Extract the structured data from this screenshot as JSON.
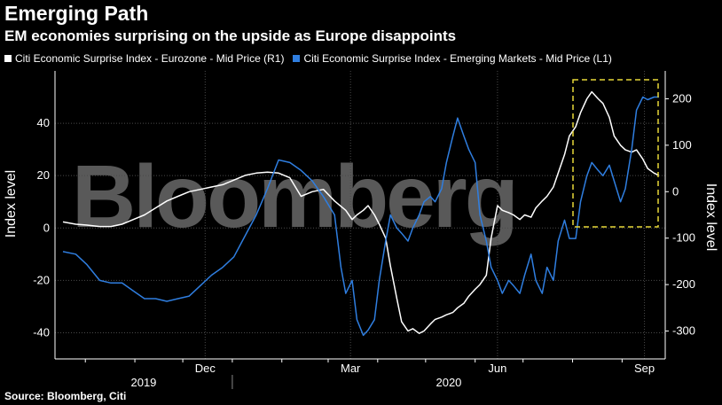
{
  "header": {
    "title": "Emerging Path",
    "subtitle": "EM economies surprising on the upside as Europe disappoints"
  },
  "legend": [
    {
      "label": "Citi Economic Surprise Index - Eurozone - Mid Price (R1)",
      "color": "#ffffff"
    },
    {
      "label": "Citi Economic Surprise Index - Emerging Markets - Mid Price (L1)",
      "color": "#2f7ee0"
    }
  ],
  "source": "Source: Bloomberg, Citi",
  "watermark": "Bloomberg",
  "chart_data": {
    "type": "line",
    "left_axis": {
      "label": "Index level",
      "ticks": [
        40,
        20,
        0,
        -20,
        -40
      ],
      "ylim": [
        -50,
        60
      ]
    },
    "right_axis": {
      "label": "Index level",
      "ticks": [
        200,
        100,
        0,
        -100,
        -200,
        -300
      ],
      "ylim": [
        -360,
        260
      ]
    },
    "x_ticks": [
      "Dec",
      "Mar",
      "Jun",
      "Sep"
    ],
    "x_years": [
      "2019",
      "2020"
    ],
    "highlight_box": true,
    "series": [
      {
        "name": "Citi Economic Surprise Index - Eurozone - Mid Price (R1)",
        "axis": "right",
        "color": "#ffffff",
        "points": [
          [
            "2019-09-17",
            -65
          ],
          [
            "2019-09-25",
            -70
          ],
          [
            "2019-10-02",
            -72
          ],
          [
            "2019-10-10",
            -75
          ],
          [
            "2019-10-17",
            -75
          ],
          [
            "2019-10-24",
            -70
          ],
          [
            "2019-10-31",
            -60
          ],
          [
            "2019-11-07",
            -50
          ],
          [
            "2019-11-14",
            -35
          ],
          [
            "2019-11-21",
            -20
          ],
          [
            "2019-11-28",
            -10
          ],
          [
            "2019-12-05",
            0
          ],
          [
            "2019-12-12",
            5
          ],
          [
            "2019-12-19",
            10
          ],
          [
            "2019-12-26",
            15
          ],
          [
            "2020-01-02",
            25
          ],
          [
            "2020-01-09",
            35
          ],
          [
            "2020-01-16",
            40
          ],
          [
            "2020-01-23",
            42
          ],
          [
            "2020-01-30",
            40
          ],
          [
            "2020-02-06",
            30
          ],
          [
            "2020-02-13",
            -10
          ],
          [
            "2020-02-20",
            0
          ],
          [
            "2020-02-27",
            5
          ],
          [
            "2020-03-05",
            -20
          ],
          [
            "2020-03-12",
            -40
          ],
          [
            "2020-03-16",
            -60
          ],
          [
            "2020-03-19",
            -50
          ],
          [
            "2020-03-23",
            -40
          ],
          [
            "2020-03-26",
            -30
          ],
          [
            "2020-03-30",
            -50
          ],
          [
            "2020-04-02",
            -70
          ],
          [
            "2020-04-06",
            -100
          ],
          [
            "2020-04-09",
            -160
          ],
          [
            "2020-04-13",
            -230
          ],
          [
            "2020-04-16",
            -280
          ],
          [
            "2020-04-20",
            -300
          ],
          [
            "2020-04-23",
            -295
          ],
          [
            "2020-04-27",
            -305
          ],
          [
            "2020-04-30",
            -300
          ],
          [
            "2020-05-04",
            -285
          ],
          [
            "2020-05-07",
            -275
          ],
          [
            "2020-05-11",
            -270
          ],
          [
            "2020-05-14",
            -265
          ],
          [
            "2020-05-18",
            -260
          ],
          [
            "2020-05-21",
            -250
          ],
          [
            "2020-05-25",
            -240
          ],
          [
            "2020-05-28",
            -225
          ],
          [
            "2020-06-01",
            -210
          ],
          [
            "2020-06-04",
            -200
          ],
          [
            "2020-06-08",
            -180
          ],
          [
            "2020-06-11",
            -100
          ],
          [
            "2020-06-15",
            -30
          ],
          [
            "2020-06-18",
            -40
          ],
          [
            "2020-06-22",
            -45
          ],
          [
            "2020-06-25",
            -50
          ],
          [
            "2020-06-29",
            -60
          ],
          [
            "2020-07-02",
            -50
          ],
          [
            "2020-07-06",
            -55
          ],
          [
            "2020-07-09",
            -35
          ],
          [
            "2020-07-13",
            -20
          ],
          [
            "2020-07-16",
            -10
          ],
          [
            "2020-07-20",
            10
          ],
          [
            "2020-07-23",
            40
          ],
          [
            "2020-07-27",
            80
          ],
          [
            "2020-07-30",
            120
          ],
          [
            "2020-08-03",
            140
          ],
          [
            "2020-08-06",
            170
          ],
          [
            "2020-08-10",
            200
          ],
          [
            "2020-08-13",
            215
          ],
          [
            "2020-08-17",
            200
          ],
          [
            "2020-08-20",
            190
          ],
          [
            "2020-08-24",
            160
          ],
          [
            "2020-08-27",
            120
          ],
          [
            "2020-08-31",
            100
          ],
          [
            "2020-09-03",
            90
          ],
          [
            "2020-09-07",
            85
          ],
          [
            "2020-09-10",
            90
          ],
          [
            "2020-09-14",
            70
          ],
          [
            "2020-09-17",
            50
          ],
          [
            "2020-09-21",
            40
          ],
          [
            "2020-09-24",
            35
          ]
        ]
      },
      {
        "name": "Citi Economic Surprise Index - Emerging Markets - Mid Price (L1)",
        "axis": "left",
        "color": "#2f7ee0",
        "points": [
          [
            "2019-09-17",
            -9
          ],
          [
            "2019-09-25",
            -10
          ],
          [
            "2019-10-02",
            -14
          ],
          [
            "2019-10-10",
            -20
          ],
          [
            "2019-10-17",
            -21
          ],
          [
            "2019-10-24",
            -21
          ],
          [
            "2019-10-31",
            -24
          ],
          [
            "2019-11-07",
            -27
          ],
          [
            "2019-11-14",
            -27
          ],
          [
            "2019-11-21",
            -28
          ],
          [
            "2019-11-28",
            -27
          ],
          [
            "2019-12-05",
            -26
          ],
          [
            "2019-12-12",
            -22
          ],
          [
            "2019-12-19",
            -18
          ],
          [
            "2019-12-26",
            -15
          ],
          [
            "2020-01-02",
            -11
          ],
          [
            "2020-01-09",
            -3
          ],
          [
            "2020-01-16",
            5
          ],
          [
            "2020-01-23",
            15
          ],
          [
            "2020-01-30",
            26
          ],
          [
            "2020-02-06",
            25
          ],
          [
            "2020-02-13",
            22
          ],
          [
            "2020-02-20",
            18
          ],
          [
            "2020-02-27",
            12
          ],
          [
            "2020-03-05",
            5
          ],
          [
            "2020-03-09",
            -15
          ],
          [
            "2020-03-12",
            -25
          ],
          [
            "2020-03-16",
            -20
          ],
          [
            "2020-03-19",
            -35
          ],
          [
            "2020-03-23",
            -41
          ],
          [
            "2020-03-26",
            -39
          ],
          [
            "2020-03-30",
            -35
          ],
          [
            "2020-04-02",
            -20
          ],
          [
            "2020-04-06",
            -5
          ],
          [
            "2020-04-09",
            5
          ],
          [
            "2020-04-13",
            0
          ],
          [
            "2020-04-16",
            -2
          ],
          [
            "2020-04-20",
            -5
          ],
          [
            "2020-04-23",
            0
          ],
          [
            "2020-04-27",
            5
          ],
          [
            "2020-04-30",
            10
          ],
          [
            "2020-05-04",
            12
          ],
          [
            "2020-05-07",
            10
          ],
          [
            "2020-05-11",
            15
          ],
          [
            "2020-05-14",
            25
          ],
          [
            "2020-05-18",
            35
          ],
          [
            "2020-05-21",
            42
          ],
          [
            "2020-05-25",
            35
          ],
          [
            "2020-05-28",
            30
          ],
          [
            "2020-06-01",
            25
          ],
          [
            "2020-06-04",
            5
          ],
          [
            "2020-06-08",
            -5
          ],
          [
            "2020-06-11",
            -15
          ],
          [
            "2020-06-15",
            -20
          ],
          [
            "2020-06-18",
            -25
          ],
          [
            "2020-06-22",
            -20
          ],
          [
            "2020-06-25",
            -22
          ],
          [
            "2020-06-29",
            -25
          ],
          [
            "2020-07-02",
            -18
          ],
          [
            "2020-07-06",
            -10
          ],
          [
            "2020-07-09",
            -20
          ],
          [
            "2020-07-13",
            -25
          ],
          [
            "2020-07-16",
            -15
          ],
          [
            "2020-07-20",
            -20
          ],
          [
            "2020-07-23",
            -5
          ],
          [
            "2020-07-27",
            3
          ],
          [
            "2020-07-30",
            -4
          ],
          [
            "2020-08-03",
            -4
          ],
          [
            "2020-08-06",
            10
          ],
          [
            "2020-08-10",
            20
          ],
          [
            "2020-08-13",
            25
          ],
          [
            "2020-08-17",
            22
          ],
          [
            "2020-08-20",
            20
          ],
          [
            "2020-08-24",
            24
          ],
          [
            "2020-08-27",
            18
          ],
          [
            "2020-08-31",
            10
          ],
          [
            "2020-09-03",
            15
          ],
          [
            "2020-09-07",
            30
          ],
          [
            "2020-09-10",
            45
          ],
          [
            "2020-09-14",
            50
          ],
          [
            "2020-09-17",
            49
          ],
          [
            "2020-09-21",
            50
          ],
          [
            "2020-09-24",
            50
          ]
        ]
      }
    ]
  }
}
